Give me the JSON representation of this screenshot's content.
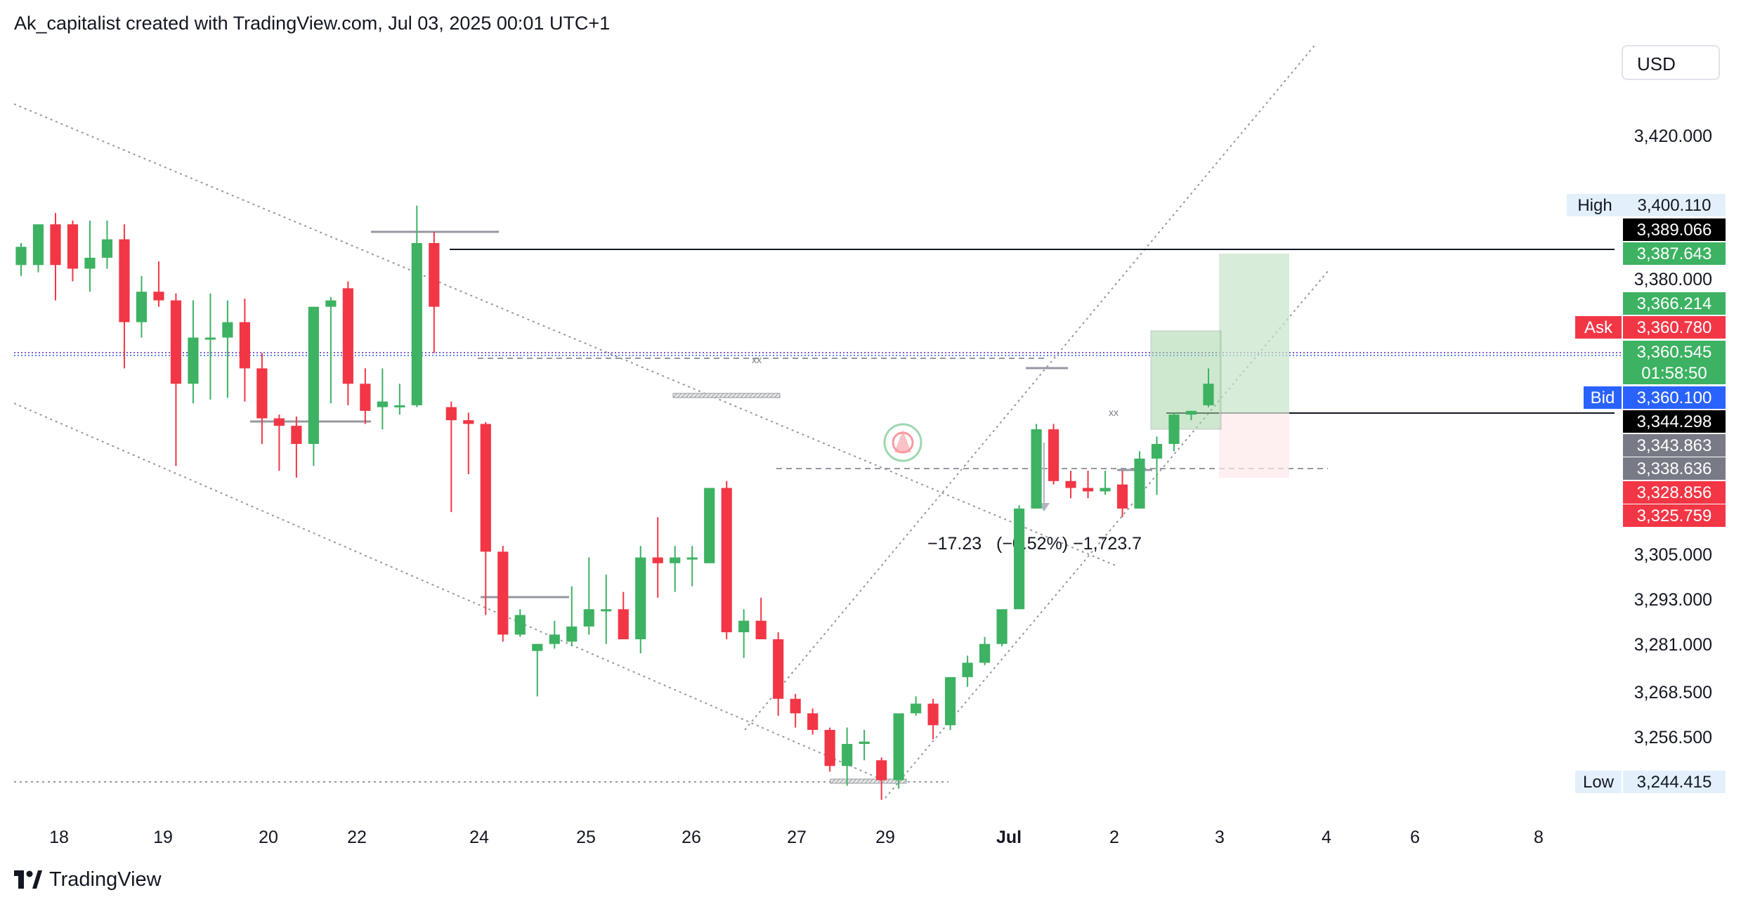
{
  "header": {
    "attribution": "Ak_capitalist created with TradingView.com, Jul 03, 2025 00:01 UTC+1"
  },
  "currency": "USD",
  "brand": {
    "name": "TradingView",
    "icon": "tradingview-logo-icon"
  },
  "colors": {
    "up": "#3db262",
    "down": "#f23645",
    "bid": "#2962ff",
    "ask": "#f23645",
    "label_gray": "#787b86",
    "target_zone": "#c8e6c9",
    "stop_zone": "#fde8ea"
  },
  "price_labels": {
    "high": {
      "label": "High",
      "value": "3,400.110"
    },
    "ask": {
      "label": "Ask",
      "value": "3,360.780"
    },
    "bid": {
      "label": "Bid",
      "value": "3,360.100"
    },
    "low": {
      "label": "Low",
      "value": "3,244.415"
    },
    "line_1": "3,389.066",
    "line_2": "3,387.643",
    "line_3": "3,366.214",
    "last": "3,360.545",
    "countdown": "01:58:50",
    "line_4": "3,344.298",
    "line_5": "3,343.863",
    "line_6": "3,338.636",
    "line_7": "3,328.856",
    "line_8": "3,325.759"
  },
  "measure_label": "−17.23   (−0.52%) −1,723.7",
  "chart_data": {
    "type": "candlestick",
    "y_ticks": [
      "3,420.000",
      "3,380.000",
      "3,305.000",
      "3,293.000",
      "3,281.000",
      "3,268.500",
      "3,256.500"
    ],
    "x_ticks": [
      "18",
      "19",
      "20",
      "22",
      "24",
      "25",
      "26",
      "27",
      "29",
      "Jul",
      "2",
      "3",
      "4",
      "6",
      "8"
    ],
    "grid": false,
    "candles": [
      {
        "o": 3384,
        "h": 3390,
        "l": 3381,
        "c": 3389
      },
      {
        "o": 3384,
        "h": 3394,
        "l": 3382,
        "c": 3395
      },
      {
        "o": 3395,
        "h": 3398,
        "l": 3368,
        "c": 3384
      },
      {
        "o": 3395,
        "h": 3396,
        "l": 3379,
        "c": 3383
      },
      {
        "o": 3383,
        "h": 3396,
        "l": 3373,
        "c": 3386
      },
      {
        "o": 3386,
        "h": 3396,
        "l": 3383,
        "c": 3391
      },
      {
        "o": 3391,
        "h": 3395,
        "l": 3362,
        "c": 3365
      },
      {
        "o": 3365,
        "h": 3381,
        "l": 3364,
        "c": 3373
      },
      {
        "o": 3373,
        "h": 3385,
        "l": 3366,
        "c": 3368
      },
      {
        "o": 3368,
        "h": 3372,
        "l": 3339,
        "c": 3361
      },
      {
        "o": 3361,
        "h": 3368,
        "l": 3357,
        "c": 3364
      },
      {
        "o": 3364,
        "h": 3372,
        "l": 3359,
        "c": 3364
      },
      {
        "o": 3364,
        "h": 3368,
        "l": 3360,
        "c": 3365
      },
      {
        "o": 3365,
        "h": 3369,
        "l": 3358,
        "c": 3362
      },
      {
        "o": 3362,
        "h": 3363,
        "l": 3342,
        "c": 3349
      },
      {
        "o": 3349,
        "h": 3351,
        "l": 3338,
        "c": 3345
      },
      {
        "o": 3345,
        "h": 3350,
        "l": 3336,
        "c": 3342
      },
      {
        "o": 3342,
        "h": 3366,
        "l": 3339,
        "c": 3366
      },
      {
        "o": 3366,
        "h": 3370,
        "l": 3357,
        "c": 3368
      },
      {
        "o": 3375,
        "h": 3379,
        "l": 3356,
        "c": 3361
      },
      {
        "o": 3361,
        "h": 3362,
        "l": 3346,
        "c": 3353
      },
      {
        "o": 3355,
        "h": 3362,
        "l": 3344,
        "c": 3358
      },
      {
        "o": 3355,
        "h": 3361,
        "l": 3351,
        "c": 3356
      },
      {
        "o": 3356,
        "h": 3400,
        "l": 3355,
        "c": 3390
      },
      {
        "o": 3390,
        "h": 3393,
        "l": 3363,
        "c": 3366
      },
      {
        "o": 3355,
        "h": 3358,
        "l": 3326,
        "c": 3348
      },
      {
        "o": 3348,
        "h": 3352,
        "l": 3337,
        "c": 3346
      },
      {
        "o": 3346,
        "h": 3347,
        "l": 3308,
        "c": 3319
      },
      {
        "o": 3319,
        "h": 3320,
        "l": 3301,
        "c": 3304
      },
      {
        "o": 3304,
        "h": 3309,
        "l": 3303,
        "c": 3308
      },
      {
        "o": 3297,
        "h": 3300,
        "l": 3278,
        "c": 3300
      },
      {
        "o": 3300,
        "h": 3307,
        "l": 3298,
        "c": 3304
      },
      {
        "o": 3301,
        "h": 3313,
        "l": 3299,
        "c": 3306
      },
      {
        "o": 3306,
        "h": 3318,
        "l": 3304,
        "c": 3309
      },
      {
        "o": 3309,
        "h": 3315,
        "l": 3300,
        "c": 3309
      },
      {
        "o": 3309,
        "h": 3312,
        "l": 3302,
        "c": 3302
      },
      {
        "o": 3302,
        "h": 3320,
        "l": 3296,
        "c": 3318
      },
      {
        "o": 3318,
        "h": 3325,
        "l": 3311,
        "c": 3317
      },
      {
        "o": 3317,
        "h": 3320,
        "l": 3312,
        "c": 3318
      },
      {
        "o": 3318,
        "h": 3320,
        "l": 3313,
        "c": 3318
      },
      {
        "o": 3317,
        "h": 3333,
        "l": 3317,
        "c": 3333
      },
      {
        "o": 3333,
        "h": 3335,
        "l": 3302,
        "c": 3305
      },
      {
        "o": 3305,
        "h": 3309,
        "l": 3294,
        "c": 3307
      },
      {
        "o": 3307,
        "h": 3311,
        "l": 3303,
        "c": 3302
      },
      {
        "o": 3302,
        "h": 3305,
        "l": 3270,
        "c": 3277
      },
      {
        "o": 3277,
        "h": 3279,
        "l": 3265,
        "c": 3271
      },
      {
        "o": 3271,
        "h": 3273,
        "l": 3262,
        "c": 3264
      },
      {
        "o": 3264,
        "h": 3265,
        "l": 3248,
        "c": 3250
      },
      {
        "o": 3250,
        "h": 3265,
        "l": 3243,
        "c": 3258
      },
      {
        "o": 3258,
        "h": 3264,
        "l": 3252,
        "c": 3259
      },
      {
        "o": 3252,
        "h": 3253,
        "l": 3238,
        "c": 3245
      },
      {
        "o": 3245,
        "h": 3270,
        "l": 3242,
        "c": 3271
      },
      {
        "o": 3271,
        "h": 3278,
        "l": 3270,
        "c": 3275
      },
      {
        "o": 3275,
        "h": 3277,
        "l": 3260,
        "c": 3266
      },
      {
        "o": 3266,
        "h": 3285,
        "l": 3264,
        "c": 3286
      },
      {
        "o": 3286,
        "h": 3295,
        "l": 3282,
        "c": 3292
      },
      {
        "o": 3292,
        "h": 3303,
        "l": 3291,
        "c": 3300
      },
      {
        "o": 3300,
        "h": 3309,
        "l": 3299,
        "c": 3309
      },
      {
        "o": 3309,
        "h": 3328,
        "l": 3309,
        "c": 3327
      },
      {
        "o": 3327,
        "h": 3346,
        "l": 3327,
        "c": 3344
      },
      {
        "o": 3344,
        "h": 3346,
        "l": 3334,
        "c": 3335
      },
      {
        "o": 3335,
        "h": 3338,
        "l": 3330,
        "c": 3333
      },
      {
        "o": 3333,
        "h": 3338,
        "l": 3330,
        "c": 3332
      },
      {
        "o": 3332,
        "h": 3338,
        "l": 3331,
        "c": 3333
      },
      {
        "o": 3334,
        "h": 3338,
        "l": 3325,
        "c": 3327
      },
      {
        "o": 3327,
        "h": 3341,
        "l": 3327,
        "c": 3340
      },
      {
        "o": 3340,
        "h": 3343,
        "l": 3331,
        "c": 3342
      },
      {
        "o": 3342,
        "h": 3352,
        "l": 3341,
        "c": 3351
      },
      {
        "o": 3351,
        "h": 3353,
        "l": 3348,
        "c": 3353
      },
      {
        "o": 3356,
        "h": 3362,
        "l": 3355,
        "c": 3361
      }
    ]
  }
}
